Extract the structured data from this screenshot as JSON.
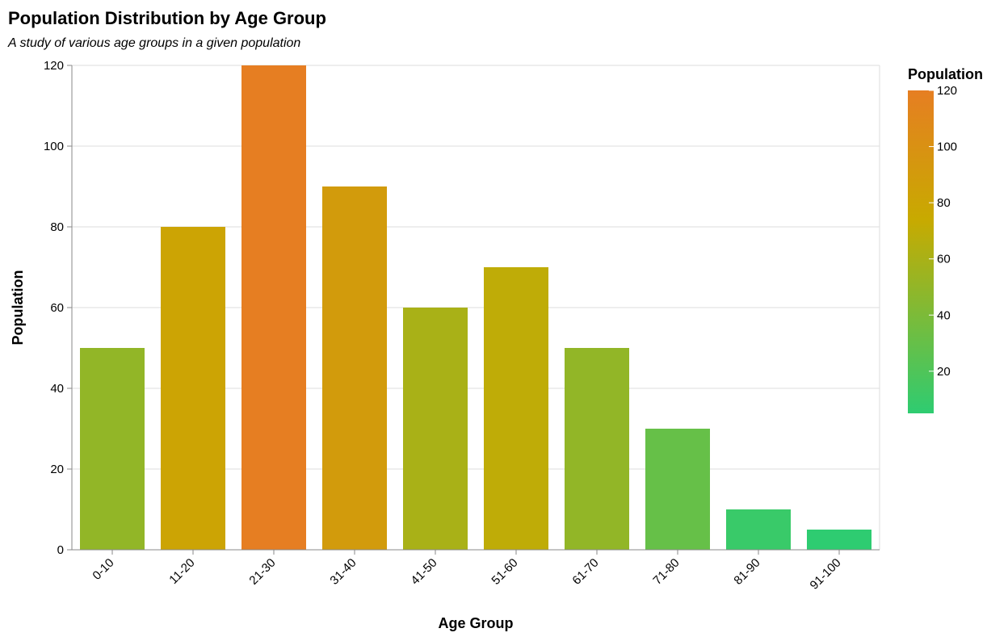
{
  "chart_data": {
    "type": "bar",
    "title": "Population Distribution by Age Group",
    "subtitle": "A study of various age groups in a given population",
    "xlabel": "Age Group",
    "ylabel": "Population",
    "categories": [
      "0-10",
      "11-20",
      "21-30",
      "31-40",
      "41-50",
      "51-60",
      "61-70",
      "71-80",
      "81-90",
      "91-100"
    ],
    "values": [
      50,
      80,
      120,
      90,
      60,
      70,
      50,
      30,
      10,
      5
    ],
    "ylim": [
      0,
      120
    ],
    "yticks": [
      0,
      20,
      40,
      60,
      80,
      100,
      120
    ],
    "grid": true,
    "legend": {
      "title": "Population",
      "placement": "right",
      "type": "color-gradient",
      "ticks": [
        20,
        40,
        60,
        80,
        100,
        120
      ],
      "domain": [
        5,
        120
      ]
    },
    "color_scale": {
      "low": "#2ecc71",
      "high": "#e67e22"
    }
  }
}
